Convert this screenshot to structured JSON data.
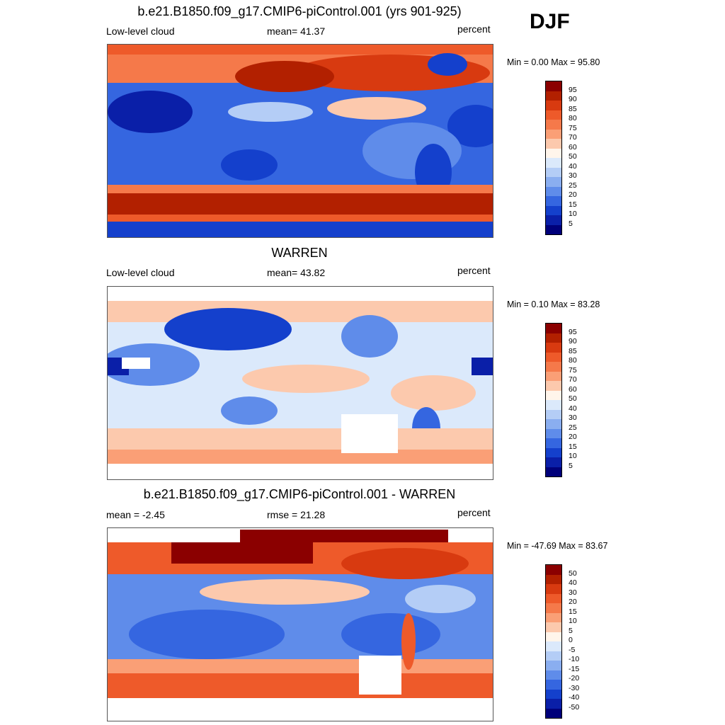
{
  "season": "DJF",
  "panels": [
    {
      "title": "b.e21.B1850.f09_g17.CMIP6-piControl.001 (yrs 901-925)",
      "left_label": "Low-level cloud",
      "center_label": "mean=  41.37",
      "right_label": "percent",
      "minmax": "Min =   0.00 Max =  95.80",
      "colorbar": [
        "95",
        "90",
        "85",
        "80",
        "75",
        "70",
        "60",
        "50",
        "40",
        "30",
        "25",
        "20",
        "15",
        "10",
        "5"
      ]
    },
    {
      "title": "WARREN",
      "left_label": "Low-level cloud",
      "center_label": "mean=  43.82",
      "right_label": "percent",
      "minmax": "Min =   0.10 Max =  83.28",
      "colorbar": [
        "95",
        "90",
        "85",
        "80",
        "75",
        "70",
        "60",
        "50",
        "40",
        "30",
        "25",
        "20",
        "15",
        "10",
        "5"
      ]
    },
    {
      "title": "b.e21.B1850.f09_g17.CMIP6-piControl.001 - WARREN",
      "left_label": "mean =  -2.45",
      "center_label": "rmse =  21.28",
      "right_label": "percent",
      "minmax": "Min = -47.69 Max =  83.67",
      "colorbar": [
        "50",
        "40",
        "30",
        "20",
        "15",
        "10",
        "5",
        "0",
        "-5",
        "-10",
        "-15",
        "-20",
        "-30",
        "-40",
        "-50"
      ]
    }
  ],
  "palette": [
    "#8b0000",
    "#b22000",
    "#d83a10",
    "#ee5a2a",
    "#f5794a",
    "#fa9f76",
    "#fcc9ad",
    "#fff5eb",
    "#dbe9fb",
    "#b4cdf6",
    "#8aaef0",
    "#5f8cea",
    "#3566e0",
    "#1440cc",
    "#0a1fa8",
    "#00007a"
  ]
}
